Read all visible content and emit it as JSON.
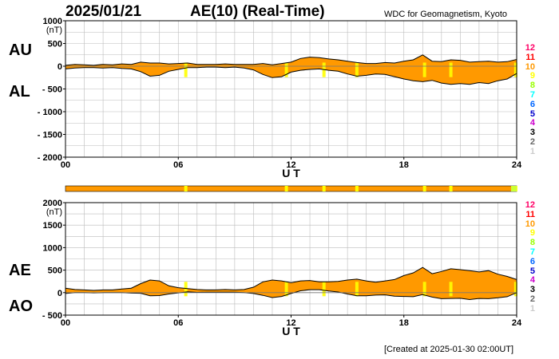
{
  "header": {
    "date": "2025/01/21",
    "title": "AE(10) (Real-Time)",
    "source": "WDC for Geomagnetism, Kyoto"
  },
  "footer": {
    "created": "[Created at 2025-01-30 02:00UT]"
  },
  "colors": {
    "fill_normal": "#ff9900",
    "fill_partial": "#ffff00",
    "fill_full_bar_edge": "#ccff33",
    "grid": "#bbbbbb",
    "line": "#000000"
  },
  "legend": [
    {
      "label": "12",
      "color": "#ff0066"
    },
    {
      "label": "11",
      "color": "#ff0000"
    },
    {
      "label": "10",
      "color": "#ff9900"
    },
    {
      "label": "9",
      "color": "#ffff00"
    },
    {
      "label": "8",
      "color": "#99ff00"
    },
    {
      "label": "7",
      "color": "#00ffff"
    },
    {
      "label": "6",
      "color": "#0066ff"
    },
    {
      "label": "5",
      "color": "#0000cc"
    },
    {
      "label": "4",
      "color": "#cc00cc"
    },
    {
      "label": "3",
      "color": "#000000"
    },
    {
      "label": "2",
      "color": "#666666"
    },
    {
      "label": "1",
      "color": "#cccccc"
    }
  ],
  "chart_data": [
    {
      "type": "area",
      "ylabels": [
        "AU",
        "AL"
      ],
      "yunit": "(nT)",
      "xlabel": "U T",
      "xlim": [
        0,
        24
      ],
      "ylim": [
        -2000,
        1000
      ],
      "yticks": [
        1000,
        500,
        0,
        -500,
        -1000,
        -1500,
        -2000
      ],
      "ytick_labels": [
        "1000",
        "500",
        "0",
        "- 500",
        "- 1000",
        "- 1500",
        "- 2000"
      ],
      "xticks": [
        0,
        6,
        12,
        18,
        24
      ],
      "xtick_labels": [
        "00",
        "06",
        "12",
        "18",
        "24"
      ],
      "grid": true,
      "highlight_hours": [
        6.4,
        11.75,
        13.75,
        15.5,
        19.1,
        20.5,
        23.95
      ],
      "series": [
        {
          "name": "AU",
          "x": [
            0,
            0.5,
            1,
            1.5,
            2,
            2.5,
            3,
            3.5,
            4,
            4.5,
            5,
            5.5,
            6,
            6.5,
            7,
            7.5,
            8,
            8.5,
            9,
            9.5,
            10,
            10.5,
            11,
            11.5,
            12,
            12.5,
            13,
            13.5,
            14,
            14.5,
            15,
            15.5,
            16,
            16.5,
            17,
            17.5,
            18,
            18.5,
            19,
            19.5,
            20,
            20.5,
            21,
            21.5,
            22,
            22.5,
            23,
            23.5,
            24
          ],
          "values": [
            20,
            40,
            30,
            20,
            40,
            30,
            50,
            40,
            90,
            70,
            70,
            50,
            60,
            70,
            40,
            40,
            40,
            50,
            40,
            40,
            40,
            60,
            30,
            60,
            90,
            170,
            200,
            190,
            160,
            140,
            110,
            80,
            60,
            60,
            80,
            70,
            110,
            140,
            250,
            110,
            100,
            140,
            130,
            90,
            100,
            110,
            90,
            100,
            150
          ]
        },
        {
          "name": "AL",
          "x": [
            0,
            0.5,
            1,
            1.5,
            2,
            2.5,
            3,
            3.5,
            4,
            4.5,
            5,
            5.5,
            6,
            6.5,
            7,
            7.5,
            8,
            8.5,
            9,
            9.5,
            10,
            10.5,
            11,
            11.5,
            12,
            12.5,
            13,
            13.5,
            14,
            14.5,
            15,
            15.5,
            16,
            16.5,
            17,
            17.5,
            18,
            18.5,
            19,
            19.5,
            20,
            20.5,
            21,
            21.5,
            22,
            22.5,
            23,
            23.5,
            24
          ],
          "values": [
            -60,
            -40,
            -30,
            -30,
            -40,
            -30,
            -50,
            -60,
            -120,
            -220,
            -200,
            -110,
            -70,
            -30,
            -30,
            -20,
            -20,
            -30,
            -20,
            -40,
            -80,
            -180,
            -250,
            -230,
            -130,
            -90,
            -70,
            -60,
            -90,
            -110,
            -170,
            -220,
            -200,
            -170,
            -180,
            -230,
            -280,
            -320,
            -340,
            -310,
            -370,
            -400,
            -380,
            -400,
            -360,
            -380,
            -320,
            -280,
            -160
          ]
        }
      ]
    },
    {
      "type": "area",
      "ylabels": [
        "AE",
        "AO"
      ],
      "yunit": "(nT)",
      "xlabel": "U T",
      "xlim": [
        0,
        24
      ],
      "ylim": [
        -500,
        2000
      ],
      "yticks": [
        2000,
        1500,
        1000,
        500,
        0,
        -500
      ],
      "ytick_labels": [
        "2000",
        "1500",
        "1000",
        "500",
        "0",
        "- 500"
      ],
      "xticks": [
        0,
        6,
        12,
        18,
        24
      ],
      "xtick_labels": [
        "00",
        "06",
        "12",
        "18",
        "24"
      ],
      "grid": true,
      "highlight_hours": [
        6.4,
        11.75,
        13.75,
        15.5,
        19.1,
        20.5,
        23.95
      ],
      "series": [
        {
          "name": "AE",
          "x": [
            0,
            0.5,
            1,
            1.5,
            2,
            2.5,
            3,
            3.5,
            4,
            4.5,
            5,
            5.5,
            6,
            6.5,
            7,
            7.5,
            8,
            8.5,
            9,
            9.5,
            10,
            10.5,
            11,
            11.5,
            12,
            12.5,
            13,
            13.5,
            14,
            14.5,
            15,
            15.5,
            16,
            16.5,
            17,
            17.5,
            18,
            18.5,
            19,
            19.5,
            20,
            20.5,
            21,
            21.5,
            22,
            22.5,
            23,
            23.5,
            24
          ],
          "values": [
            100,
            70,
            60,
            50,
            60,
            60,
            80,
            100,
            200,
            280,
            260,
            150,
            110,
            90,
            70,
            60,
            60,
            70,
            60,
            70,
            120,
            240,
            280,
            260,
            220,
            260,
            270,
            240,
            240,
            250,
            280,
            300,
            260,
            230,
            260,
            290,
            380,
            440,
            560,
            420,
            470,
            530,
            510,
            490,
            460,
            490,
            410,
            360,
            290
          ]
        },
        {
          "name": "AO",
          "x": [
            0,
            0.5,
            1,
            1.5,
            2,
            2.5,
            3,
            3.5,
            4,
            4.5,
            5,
            5.5,
            6,
            6.5,
            7,
            7.5,
            8,
            8.5,
            9,
            9.5,
            10,
            10.5,
            11,
            11.5,
            12,
            12.5,
            13,
            13.5,
            14,
            14.5,
            15,
            15.5,
            16,
            16.5,
            17,
            17.5,
            18,
            18.5,
            19,
            19.5,
            20,
            20.5,
            21,
            21.5,
            22,
            22.5,
            23,
            23.5,
            24
          ],
          "values": [
            -20,
            0,
            0,
            -5,
            0,
            0,
            0,
            -10,
            -15,
            -70,
            -65,
            -30,
            -5,
            20,
            5,
            10,
            10,
            10,
            10,
            0,
            -20,
            -60,
            -110,
            -85,
            -20,
            40,
            65,
            65,
            35,
            15,
            -30,
            -70,
            -70,
            -55,
            -50,
            -80,
            -85,
            -90,
            -45,
            -100,
            -135,
            -130,
            -125,
            -155,
            -130,
            -135,
            -115,
            -90,
            0
          ]
        }
      ]
    }
  ]
}
